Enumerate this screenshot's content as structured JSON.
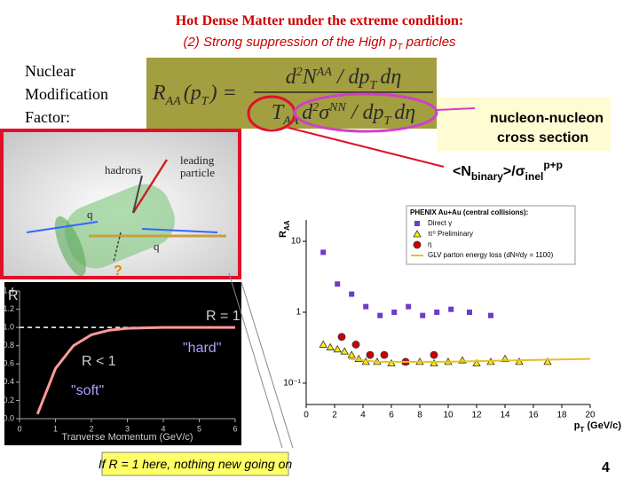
{
  "header": {
    "title": "Hot Dense Matter under the extreme condition:",
    "subtitle": [
      "(2) Strong suppression of the High p",
      "T",
      " particles"
    ]
  },
  "definition": {
    "label": [
      "Nuclear",
      "Modification",
      "Factor:"
    ]
  },
  "formula": {
    "lhs": [
      "R",
      "AA",
      "(",
      "p",
      "T",
      ")",
      "="
    ],
    "numerator": [
      "d",
      "2",
      "N",
      "AA",
      "/",
      "dp",
      "T",
      "d",
      "η"
    ],
    "denominator": [
      "T",
      "AA",
      "d",
      "2",
      "σ",
      "NN",
      "/",
      "dp",
      "T",
      "d",
      "η"
    ]
  },
  "callouts": {
    "cross_section": [
      "nucleon-nucleon",
      "cross section"
    ],
    "ratio": [
      "<N",
      "binary",
      ">/σ",
      "inel",
      "p+p"
    ]
  },
  "diagram": {
    "hadrons": "hadrons",
    "leading": [
      "leading",
      "particle"
    ],
    "quark_left": "q",
    "quark_right": "q",
    "question": "?"
  },
  "chart_data": [
    {
      "type": "line",
      "ylabel": "R",
      "xlabel": "Tranverse Momentum (GeV/c)",
      "xlim": [
        0,
        6
      ],
      "ylim": [
        0,
        1.4
      ],
      "xticks": [
        0,
        1,
        2,
        3,
        4,
        5,
        6
      ],
      "yticks": [
        {
          "value": 0,
          "label": "0.0"
        },
        0.2,
        0.4,
        0.6,
        0.8,
        {
          "value": 1,
          "label": "1.0"
        },
        1.2,
        1.4
      ],
      "reference": 1,
      "annotations": [
        "R = 1",
        "R < 1",
        "\"hard\"",
        "\"soft\""
      ],
      "series": [
        {
          "type": "line",
          "color": "#ff9a9a",
          "x": [
            0.5,
            0.75,
            1,
            1.5,
            2,
            2.5,
            3,
            4,
            5,
            6
          ],
          "values": [
            0.05,
            0.3,
            0.55,
            0.8,
            0.92,
            0.97,
            0.99,
            1,
            1,
            1
          ]
        }
      ]
    },
    {
      "type": "scatter",
      "log_y": true,
      "ylabel": [
        "R",
        "AA"
      ],
      "xlabel": [
        "p",
        "T",
        " (GeV/c)"
      ],
      "xlim": [
        0,
        20
      ],
      "ylim": [
        0.05,
        20
      ],
      "xticks": [
        0,
        2,
        4,
        6,
        8,
        10,
        12,
        14,
        16,
        18,
        20
      ],
      "yticks": [
        {
          "value": 0.1,
          "label": "10⁻¹"
        },
        1,
        10
      ],
      "legend_title": "PHENIX Au+Au (central collisions):",
      "series": [
        {
          "name": "Direct γ",
          "type": "square",
          "color": "#6a3dc8",
          "x": [
            1.2,
            2.2,
            3.2,
            4.2,
            5.2,
            6.2,
            7.2,
            8.2,
            9.2,
            10.2,
            11.5,
            13
          ],
          "values": [
            7,
            2.5,
            1.8,
            1.2,
            0.9,
            1,
            1.2,
            0.9,
            1,
            1.1,
            1,
            0.9
          ]
        },
        {
          "name": "π⁰ Preliminary",
          "type": "triangle",
          "color": "#ffee00",
          "x": [
            1.2,
            1.7,
            2.2,
            2.7,
            3.2,
            3.7,
            4.2,
            5,
            6,
            7,
            8,
            9,
            10,
            11,
            12,
            13,
            14,
            15,
            17
          ],
          "values": [
            0.35,
            0.32,
            0.3,
            0.28,
            0.25,
            0.22,
            0.2,
            0.2,
            0.19,
            0.2,
            0.2,
            0.19,
            0.2,
            0.21,
            0.19,
            0.2,
            0.22,
            0.2,
            0.2
          ]
        },
        {
          "name": "η",
          "type": "circle",
          "color": "#cc0000",
          "x": [
            2.5,
            3.5,
            4.5,
            5.5,
            7,
            9
          ],
          "values": [
            0.45,
            0.35,
            0.25,
            0.25,
            0.2,
            0.25
          ]
        },
        {
          "name": "GLV parton energy loss (dNᵍ/dy = 1100)",
          "type": "line",
          "color": "#e8c020",
          "x": [
            3,
            5,
            10,
            15,
            20
          ],
          "values": [
            0.22,
            0.2,
            0.2,
            0.21,
            0.22
          ]
        }
      ]
    }
  ],
  "note": "If R = 1 here, nothing new going on",
  "page_number": "4"
}
